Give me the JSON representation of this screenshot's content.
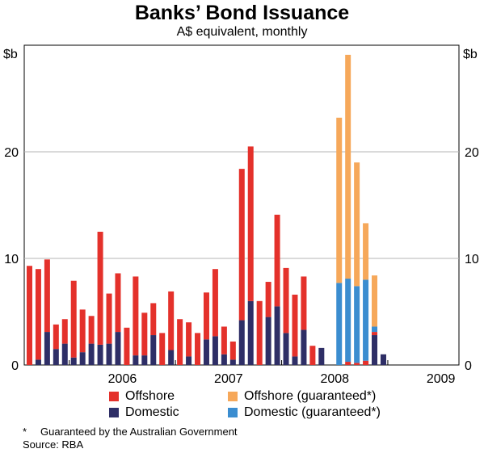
{
  "chart_data": {
    "type": "bar",
    "stacked": true,
    "title": "Banks’ Bond Issuance",
    "subtitle": "A$ equivalent, monthly",
    "y_unit_left": "$b",
    "y_unit_right": "$b",
    "ylim": [
      0,
      30
    ],
    "yticks": [
      "0",
      "10",
      "20"
    ],
    "ytick_values": [
      0,
      10,
      20
    ],
    "year_labels": [
      "2006",
      "2007",
      "2008",
      "2009"
    ],
    "grid": true,
    "legend_position": "bottom",
    "months": [
      "2005-08",
      "2005-09",
      "2005-10",
      "2005-11",
      "2005-12",
      "2006-01",
      "2006-02",
      "2006-03",
      "2006-04",
      "2006-05",
      "2006-06",
      "2006-07",
      "2006-08",
      "2006-09",
      "2006-10",
      "2006-11",
      "2006-12",
      "2007-01",
      "2007-02",
      "2007-03",
      "2007-04",
      "2007-05",
      "2007-06",
      "2007-07",
      "2007-08",
      "2007-09",
      "2007-10",
      "2007-11",
      "2007-12",
      "2008-01",
      "2008-02",
      "2008-03",
      "2008-04",
      "2008-05",
      "2008-06",
      "2008-07",
      "2008-08",
      "2008-09",
      "2008-10",
      "2008-11",
      "2008-12",
      "2009-01",
      "2009-02",
      "2009-03",
      "2009-04",
      "2009-05"
    ],
    "series": [
      {
        "name": "Domestic",
        "color": "#2e2e66",
        "values": [
          0,
          0.5,
          3.1,
          1.5,
          2.0,
          0.7,
          1.2,
          2.0,
          1.9,
          2.0,
          3.1,
          0,
          0.9,
          0.9,
          2.8,
          0,
          1.4,
          0,
          0.8,
          0,
          2.4,
          2.7,
          1.0,
          0.5,
          4.2,
          6.0,
          0,
          4.5,
          5.5,
          3.0,
          0.8,
          3.3,
          0,
          1.6,
          0,
          0,
          0,
          0,
          0,
          2.8,
          1.0,
          0,
          0,
          0,
          0,
          0
        ]
      },
      {
        "name": "Offshore",
        "color": "#e4312b",
        "values": [
          9.3,
          8.5,
          6.8,
          2.3,
          2.3,
          7.2,
          4.0,
          2.6,
          10.6,
          4.7,
          5.5,
          3.5,
          7.4,
          4.0,
          3.0,
          3.0,
          5.5,
          4.3,
          3.2,
          3.0,
          4.4,
          6.3,
          2.6,
          1.7,
          14.2,
          14.5,
          6.0,
          3.3,
          8.6,
          6.1,
          5.8,
          5.0,
          1.8,
          0,
          0,
          0,
          0.3,
          0.2,
          0.4,
          0.3,
          0,
          0,
          0,
          0,
          0,
          0
        ]
      },
      {
        "name": "Domestic (guaranteed*)",
        "color": "#3b8dd0",
        "values": [
          0,
          0,
          0,
          0,
          0,
          0,
          0,
          0,
          0,
          0,
          0,
          0,
          0,
          0,
          0,
          0,
          0,
          0,
          0,
          0,
          0,
          0,
          0,
          0,
          0,
          0,
          0,
          0,
          0,
          0,
          0,
          0,
          0,
          0,
          0,
          7.7,
          7.8,
          7.2,
          7.6,
          0.5,
          0,
          0,
          0,
          0,
          0,
          0
        ]
      },
      {
        "name": "Offshore (guaranteed*)",
        "color": "#f6a85a",
        "values": [
          0,
          0,
          0,
          0,
          0,
          0,
          0,
          0,
          0,
          0,
          0,
          0,
          0,
          0,
          0,
          0,
          0,
          0,
          0,
          0,
          0,
          0,
          0,
          0,
          0,
          0,
          0,
          0,
          0,
          0,
          0,
          0,
          0,
          0,
          0,
          15.5,
          21.0,
          11.6,
          5.3,
          4.8,
          0,
          0,
          0,
          0,
          0,
          0
        ]
      }
    ]
  },
  "legend": [
    {
      "label": "Offshore",
      "color": "#e4312b"
    },
    {
      "label": "Offshore (guaranteed*)",
      "color": "#f6a85a"
    },
    {
      "label": "Domestic",
      "color": "#2e2e66"
    },
    {
      "label": "Domestic (guaranteed*)",
      "color": "#3b8dd0"
    }
  ],
  "footnote": {
    "marker": "*",
    "text": "Guaranteed by the Australian Government"
  },
  "source": "Source: RBA"
}
